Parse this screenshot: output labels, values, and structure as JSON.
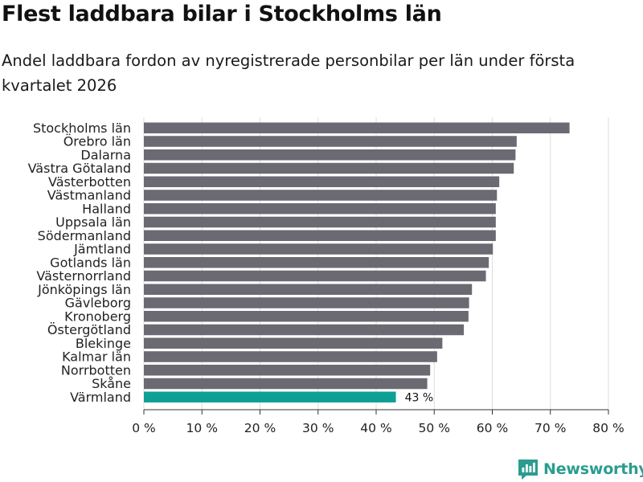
{
  "header": {
    "title": "Flest laddbara bilar i Stockholms län",
    "subtitle": "Andel laddbara fordon av nyregistrerade personbilar per län under första kvartalet 2026"
  },
  "brand": {
    "name": "Newsworthy",
    "icon": "newsworthy-logo-icon"
  },
  "colors": {
    "bar": "#6b6a72",
    "highlight": "#0fa095",
    "grid": "#dddddd",
    "brand": "#2a9d8f"
  },
  "chart_data": {
    "type": "bar",
    "orientation": "horizontal",
    "title": "Flest laddbara bilar i Stockholms län",
    "subtitle": "Andel laddbara fordon av nyregistrerade personbilar per län under första kvartalet 2026",
    "xlabel": "",
    "ylabel": "",
    "xlim": [
      0,
      80
    ],
    "x_ticks": [
      0,
      10,
      20,
      30,
      40,
      50,
      60,
      70,
      80
    ],
    "x_tick_labels": [
      "0 %",
      "10 %",
      "20 %",
      "30 %",
      "40 %",
      "50 %",
      "60 %",
      "70 %",
      "80 %"
    ],
    "grid": true,
    "categories": [
      "Stockholms län",
      "Örebro län",
      "Dalarna",
      "Västra Götaland",
      "Västerbotten",
      "Västmanland",
      "Halland",
      "Uppsala län",
      "Södermanland",
      "Jämtland",
      "Gotlands län",
      "Västernorrland",
      "Jönköpings län",
      "Gävleborg",
      "Kronoberg",
      "Östergötland",
      "Blekinge",
      "Kalmar län",
      "Norrbotten",
      "Skåne",
      "Värmland"
    ],
    "values": [
      73.3,
      64.2,
      64.0,
      63.7,
      61.2,
      60.8,
      60.6,
      60.6,
      60.6,
      60.1,
      59.4,
      58.9,
      56.5,
      56.0,
      55.9,
      55.1,
      51.4,
      50.5,
      49.3,
      48.8,
      43.4
    ],
    "highlight": "Värmland",
    "highlight_label": "43 %"
  }
}
